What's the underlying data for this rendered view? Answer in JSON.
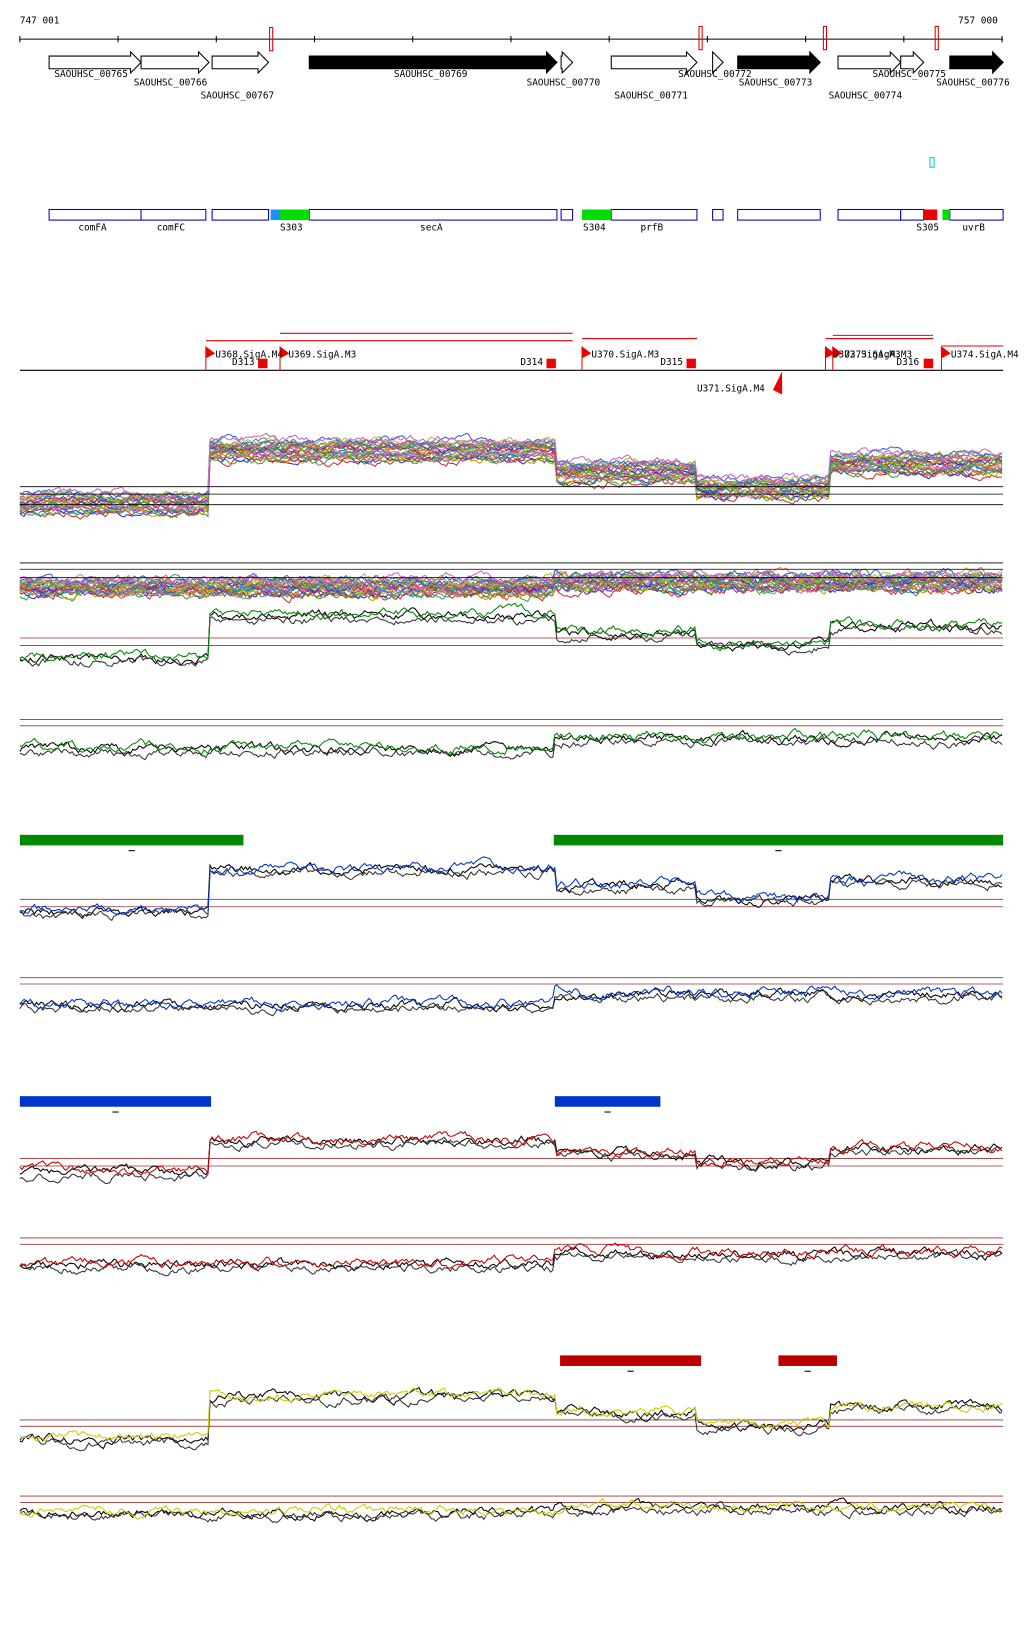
{
  "header": {
    "start": "747 001",
    "end": "757 000"
  },
  "genes": [
    {
      "label": "SAOUHSC_00765"
    },
    {
      "label": "SAOUHSC_00766"
    },
    {
      "label": "SAOUHSC_00767"
    },
    {
      "label": "SAOUHSC_00769"
    },
    {
      "label": "SAOUHSC_00770"
    },
    {
      "label": "SAOUHSC_00771"
    },
    {
      "label": "SAOUHSC_00772"
    },
    {
      "label": "SAOUHSC_00773"
    },
    {
      "label": "SAOUHSC_00774"
    },
    {
      "label": "SAOUHSC_00775"
    },
    {
      "label": "SAOUHSC_00776"
    }
  ],
  "features": [
    {
      "label": "comFA"
    },
    {
      "label": "comFC"
    },
    {
      "label": "S303"
    },
    {
      "label": "secA"
    },
    {
      "label": "S304"
    },
    {
      "label": "prfB"
    },
    {
      "label": "S305"
    },
    {
      "label": "uvrB"
    }
  ],
  "annotations": [
    {
      "label": "U368.SigA.M4"
    },
    {
      "label": "D313"
    },
    {
      "label": "U369.SigA.M3"
    },
    {
      "label": "D314"
    },
    {
      "label": "U370.SigA.M3"
    },
    {
      "label": "D315"
    },
    {
      "label": "U371.SigA.M4"
    },
    {
      "label": "U372.SigA.M3"
    },
    {
      "label": "U373.SigA.M3"
    },
    {
      "label": "D316"
    },
    {
      "label": "U374.SigA.M4"
    }
  ]
}
